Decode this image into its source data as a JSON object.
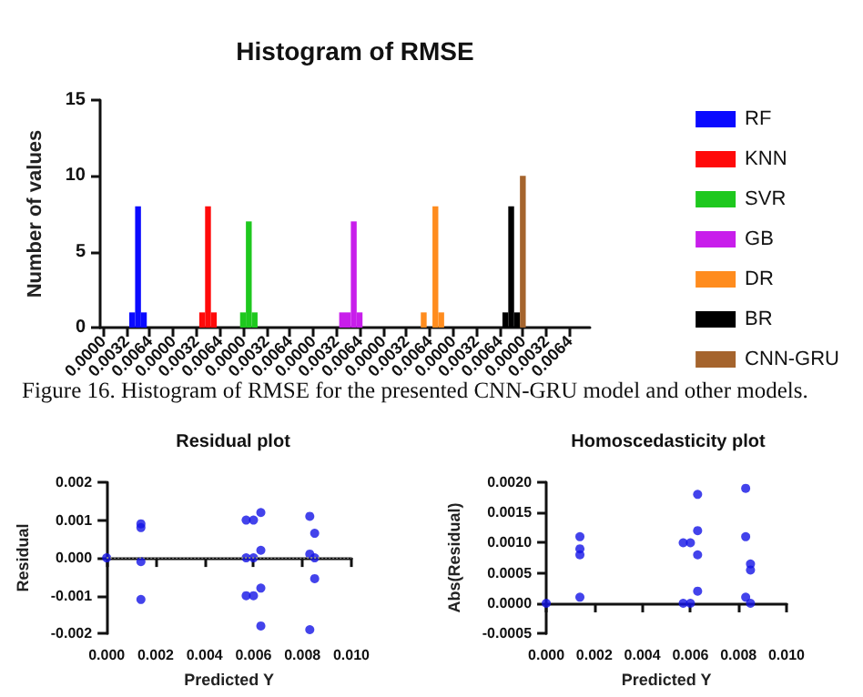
{
  "chart_data": [
    {
      "type": "bar",
      "title": "Histogram of RMSE",
      "ylabel": "Number of values",
      "categories": [
        "0.0000",
        null,
        null,
        null,
        "0.0032",
        null,
        null,
        null,
        "0.0064",
        null,
        null,
        null,
        "0.0000",
        null,
        null,
        null,
        "0.0032",
        null,
        null,
        null,
        "0.0064",
        null,
        null,
        null,
        "0.0000",
        null,
        null,
        null,
        "0.0032",
        null,
        null,
        null,
        "0.0064",
        null,
        null,
        null,
        "0.0000",
        null,
        null,
        null,
        "0.0032",
        null,
        null,
        null,
        "0.0064",
        null,
        null,
        null,
        "0.0000",
        null,
        null,
        null,
        "0.0032",
        null,
        null,
        null,
        "0.0064",
        null,
        null,
        null,
        "0.0000",
        null,
        null,
        null,
        "0.0032",
        null,
        null,
        null,
        "0.0064",
        null,
        null,
        null,
        "0.0000",
        null,
        null,
        null,
        "0.0032",
        null,
        null,
        null,
        "0.0064",
        null,
        null,
        null
      ],
      "series": [
        {
          "name": "RF",
          "color": "#0a0aff",
          "values": [
            null,
            null,
            null,
            null,
            null,
            1,
            8,
            1,
            null,
            null,
            null,
            null,
            null,
            null,
            null,
            null,
            null,
            null,
            null,
            null,
            null,
            null,
            null,
            null,
            null,
            null,
            null,
            null,
            null,
            null,
            null,
            null,
            null,
            null,
            null,
            null,
            null,
            null,
            null,
            null,
            null,
            null,
            null,
            null,
            null,
            null,
            null,
            null,
            null,
            null,
            null,
            null,
            null,
            null,
            null,
            null,
            null,
            null,
            null,
            null,
            null,
            null,
            null,
            null,
            null,
            null,
            null,
            null,
            null,
            null,
            null,
            null,
            null,
            null,
            null,
            null,
            null,
            null,
            null,
            null,
            null,
            null,
            null,
            null
          ]
        },
        {
          "name": "KNN",
          "color": "#ff0a0a",
          "values": [
            null,
            null,
            null,
            null,
            null,
            null,
            null,
            null,
            null,
            null,
            null,
            null,
            null,
            null,
            null,
            null,
            null,
            1,
            8,
            1,
            null,
            null,
            null,
            null,
            null,
            null,
            null,
            null,
            null,
            null,
            null,
            null,
            null,
            null,
            null,
            null,
            null,
            null,
            null,
            null,
            null,
            null,
            null,
            null,
            null,
            null,
            null,
            null,
            null,
            null,
            null,
            null,
            null,
            null,
            null,
            null,
            null,
            null,
            null,
            null,
            null,
            null,
            null,
            null,
            null,
            null,
            null,
            null,
            null,
            null,
            null,
            null,
            null,
            null,
            null,
            null,
            null,
            null,
            null,
            null,
            null,
            null,
            null,
            null
          ]
        },
        {
          "name": "SVR",
          "color": "#1ec81e",
          "values": [
            null,
            null,
            null,
            null,
            null,
            null,
            null,
            null,
            null,
            null,
            null,
            null,
            null,
            null,
            null,
            null,
            null,
            null,
            null,
            null,
            null,
            null,
            null,
            null,
            1,
            7,
            1,
            null,
            null,
            null,
            null,
            null,
            null,
            null,
            null,
            null,
            null,
            null,
            null,
            null,
            null,
            null,
            null,
            null,
            null,
            null,
            null,
            null,
            null,
            null,
            null,
            null,
            null,
            null,
            null,
            null,
            null,
            null,
            null,
            null,
            null,
            null,
            null,
            null,
            null,
            null,
            null,
            null,
            null,
            null,
            null,
            null,
            null,
            null,
            null,
            null,
            null,
            null,
            null,
            null,
            null,
            null,
            null,
            null
          ]
        },
        {
          "name": "GB",
          "color": "#c81eeb",
          "values": [
            null,
            null,
            null,
            null,
            null,
            null,
            null,
            null,
            null,
            null,
            null,
            null,
            null,
            null,
            null,
            null,
            null,
            null,
            null,
            null,
            null,
            null,
            null,
            null,
            null,
            null,
            null,
            null,
            null,
            null,
            null,
            null,
            null,
            null,
            null,
            null,
            null,
            null,
            null,
            null,
            null,
            1,
            1,
            7,
            1,
            null,
            null,
            null,
            null,
            null,
            null,
            null,
            null,
            null,
            null,
            null,
            null,
            null,
            null,
            null,
            null,
            null,
            null,
            null,
            null,
            null,
            null,
            null,
            null,
            null,
            null,
            null,
            null,
            null,
            null,
            null,
            null,
            null,
            null,
            null,
            null,
            null,
            null,
            null
          ]
        },
        {
          "name": "DR",
          "color": "#ff8c1e",
          "values": [
            null,
            null,
            null,
            null,
            null,
            null,
            null,
            null,
            null,
            null,
            null,
            null,
            null,
            null,
            null,
            null,
            null,
            null,
            null,
            null,
            null,
            null,
            null,
            null,
            null,
            null,
            null,
            null,
            null,
            null,
            null,
            null,
            null,
            null,
            null,
            null,
            null,
            null,
            null,
            null,
            null,
            null,
            null,
            null,
            null,
            null,
            null,
            null,
            null,
            null,
            null,
            null,
            null,
            null,
            null,
            1,
            null,
            8,
            1,
            null,
            null,
            null,
            null,
            null,
            null,
            null,
            null,
            null,
            null,
            null,
            null,
            null,
            null,
            null,
            null,
            null,
            null,
            null,
            null,
            null,
            null,
            null,
            null,
            null
          ]
        },
        {
          "name": "BR",
          "color": "#000000",
          "values": [
            null,
            null,
            null,
            null,
            null,
            null,
            null,
            null,
            null,
            null,
            null,
            null,
            null,
            null,
            null,
            null,
            null,
            null,
            null,
            null,
            null,
            null,
            null,
            null,
            null,
            null,
            null,
            null,
            null,
            null,
            null,
            null,
            null,
            null,
            null,
            null,
            null,
            null,
            null,
            null,
            null,
            null,
            null,
            null,
            null,
            null,
            null,
            null,
            null,
            null,
            null,
            null,
            null,
            null,
            null,
            null,
            null,
            null,
            null,
            null,
            null,
            null,
            null,
            null,
            null,
            null,
            null,
            null,
            null,
            1,
            8,
            1,
            null,
            null,
            null,
            null,
            null,
            null,
            null,
            null,
            null,
            null,
            null,
            null
          ]
        },
        {
          "name": "CNN-GRU",
          "color": "#a5642d",
          "values": [
            null,
            null,
            null,
            null,
            null,
            null,
            null,
            null,
            null,
            null,
            null,
            null,
            null,
            null,
            null,
            null,
            null,
            null,
            null,
            null,
            null,
            null,
            null,
            null,
            null,
            null,
            null,
            null,
            null,
            null,
            null,
            null,
            null,
            null,
            null,
            null,
            null,
            null,
            null,
            null,
            null,
            null,
            null,
            null,
            null,
            null,
            null,
            null,
            null,
            null,
            null,
            null,
            null,
            null,
            null,
            null,
            null,
            null,
            null,
            null,
            null,
            null,
            null,
            null,
            null,
            null,
            null,
            null,
            null,
            null,
            null,
            null,
            10,
            null,
            null,
            null,
            null,
            null,
            null,
            null,
            null,
            null,
            null,
            null
          ]
        }
      ],
      "ylim": [
        0,
        15
      ],
      "yticks": [
        0,
        5,
        10,
        15
      ],
      "legend": "right",
      "annotations": [
        "Figure 16. Histogram of RMSE for the presented CNN-GRU model and other models."
      ]
    },
    {
      "type": "scatter",
      "title": "Residual plot",
      "xlabel": "Predicted Y",
      "ylabel": "Residual",
      "marker": "circle",
      "x": [
        0,
        0.0014,
        0.0014,
        0.0014,
        0.0014,
        0.0057,
        0.0057,
        0.0057,
        0.006,
        0.006,
        0.006,
        0.0063,
        0.0063,
        0.0063,
        0.0063,
        0.0083,
        0.0083,
        0.0083,
        0.0085,
        0.0085,
        0.0085
      ],
      "series": [
        {
          "color": "#1414e6",
          "values": [
            0,
            0.0009,
            0.0008,
            -0.0001,
            -0.0011,
            0.001,
            0,
            -0.001,
            0.001,
            0,
            -0.001,
            0.0012,
            0.0002,
            -0.0008,
            -0.0018,
            0.0011,
            0.0001,
            -0.0019,
            0.00065,
            0,
            -0.00055
          ]
        }
      ],
      "xlim": [
        0,
        0.01
      ],
      "xticks": [
        {
          "value": 0,
          "label": "0.000"
        },
        {
          "value": 0.002,
          "label": "0.002"
        },
        {
          "value": 0.004,
          "label": "0.004"
        },
        {
          "value": 0.006,
          "label": "0.006"
        },
        {
          "value": 0.008,
          "label": "0.008"
        },
        {
          "value": 0.01,
          "label": "0.010"
        }
      ],
      "ylim": [
        -0.002,
        0.002
      ],
      "yticks": [
        {
          "value": -0.002,
          "label": "-0.002"
        },
        {
          "value": -0.001,
          "label": "-0.001"
        },
        {
          "value": 0,
          "label": "0.000"
        },
        {
          "value": 0.001,
          "label": "0.001"
        },
        {
          "value": 0.002,
          "label": "0.002"
        }
      ],
      "ref_lines": [
        {
          "axis": "y",
          "value": 0,
          "color": "#888888",
          "line_style": "dotted"
        }
      ]
    },
    {
      "type": "scatter",
      "title": "Homoscedasticity plot",
      "xlabel": "Predicted Y",
      "ylabel": "Abs(Residual)",
      "marker": "circle",
      "series": [
        {
          "color": "#1414e6",
          "x": [
            0,
            0.0014,
            0.0014,
            0.0014,
            0.0014,
            0.0057,
            0.0057,
            0.006,
            0.006,
            0.0063,
            0.0063,
            0.0063,
            0.0063,
            0.0083,
            0.0083,
            0.0083,
            0.0085,
            0.0085,
            0.0085
          ],
          "values": [
            0,
            0.0009,
            0.0008,
            0.0001,
            0.0011,
            0.001,
            0,
            0.001,
            0,
            0.0012,
            0.0002,
            0.0008,
            0.0018,
            0.0011,
            0.0001,
            0.0019,
            0.00065,
            0,
            0.00055
          ]
        }
      ],
      "xlim": [
        0,
        0.01
      ],
      "xticks": [
        {
          "value": 0,
          "label": "0.000"
        },
        {
          "value": 0.002,
          "label": "0.002"
        },
        {
          "value": 0.004,
          "label": "0.004"
        },
        {
          "value": 0.006,
          "label": "0.006"
        },
        {
          "value": 0.008,
          "label": "0.008"
        },
        {
          "value": 0.01,
          "label": "0.010"
        }
      ],
      "ylim": [
        -0.0005,
        0.002
      ],
      "yticks": [
        {
          "value": -0.0005,
          "label": "-0.0005"
        },
        {
          "value": 0,
          "label": "0.0000"
        },
        {
          "value": 0.0005,
          "label": "0.0005"
        },
        {
          "value": 0.001,
          "label": "0.0010"
        },
        {
          "value": 0.0015,
          "label": "0.0015"
        },
        {
          "value": 0.002,
          "label": "0.0020"
        }
      ]
    }
  ]
}
